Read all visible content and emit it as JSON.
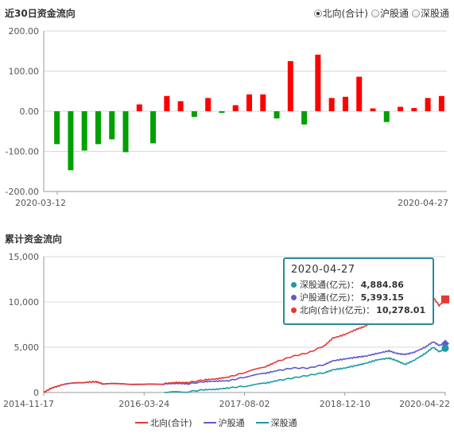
{
  "header": {
    "top_title": "近30日资金流向",
    "bottom_title": "累计资金流向",
    "radios": [
      {
        "label": "北向(合计)",
        "selected": true
      },
      {
        "label": "沪股通",
        "selected": false
      },
      {
        "label": "深股通",
        "selected": false
      }
    ]
  },
  "colors": {
    "up": "#ff0000",
    "down": "#00a000",
    "north": "#e53935",
    "sh": "#5c5cc8",
    "sz": "#1a9aa0"
  },
  "chart_data": [
    {
      "type": "bar",
      "ylim": [
        -200,
        200
      ],
      "yticks": [
        "200.00",
        "100.00",
        "0.00",
        "-100.00",
        "-200.00"
      ],
      "xlabels": [
        "2020-03-12",
        "2020-04-27"
      ],
      "values": [
        -82,
        -147,
        -98,
        -82,
        -70,
        -102,
        17,
        -80,
        38,
        25,
        -14,
        33,
        -4,
        15,
        42,
        42,
        -18,
        125,
        -33,
        141,
        33,
        36,
        86,
        7,
        -27,
        11,
        8,
        33,
        38
      ]
    },
    {
      "type": "line",
      "ylim": [
        0,
        15000
      ],
      "yticks": [
        "15,000",
        "10,000",
        "5,000",
        "0"
      ],
      "xlabels": [
        "2014-11-17",
        "2016-03-24",
        "2017-08-02",
        "2018-12-10",
        "2020-04-22"
      ],
      "legend": [
        "北向(合计)",
        "沪股通",
        "深股通"
      ],
      "tooltip": {
        "date": "2020-04-27",
        "rows": [
          {
            "label": "深股通(亿元)",
            "value": "4,884.86"
          },
          {
            "label": "沪股通(亿元)",
            "value": "5,393.15"
          },
          {
            "label": "北向(合计)(亿元)",
            "value": "10,278.01"
          }
        ]
      },
      "series": [
        {
          "name": "北向(合计)",
          "end": 10278.01,
          "points": [
            [
              0,
              0
            ],
            [
              0.02,
              500
            ],
            [
              0.05,
              900
            ],
            [
              0.1,
              1100
            ],
            [
              0.13,
              1200
            ],
            [
              0.15,
              900
            ],
            [
              0.2,
              1000
            ],
            [
              0.25,
              850
            ],
            [
              0.3,
              1000
            ],
            [
              0.33,
              1100
            ],
            [
              0.36,
              1100
            ],
            [
              0.4,
              1400
            ],
            [
              0.43,
              1500
            ],
            [
              0.46,
              1700
            ],
            [
              0.5,
              2200
            ],
            [
              0.55,
              2800
            ],
            [
              0.58,
              3400
            ],
            [
              0.62,
              4000
            ],
            [
              0.66,
              4400
            ],
            [
              0.7,
              5200
            ],
            [
              0.72,
              6000
            ],
            [
              0.75,
              6400
            ],
            [
              0.78,
              7000
            ],
            [
              0.8,
              7300
            ],
            [
              0.83,
              8200
            ],
            [
              0.86,
              8900
            ],
            [
              0.88,
              8500
            ],
            [
              0.9,
              7700
            ],
            [
              0.92,
              8600
            ],
            [
              0.95,
              9800
            ],
            [
              0.97,
              10500
            ],
            [
              0.985,
              9600
            ],
            [
              1.0,
              10278
            ]
          ]
        },
        {
          "name": "沪股通",
          "end": 5393.15,
          "points": [
            [
              0,
              0
            ],
            [
              0.02,
              500
            ],
            [
              0.05,
              900
            ],
            [
              0.1,
              1100
            ],
            [
              0.13,
              1200
            ],
            [
              0.15,
              900
            ],
            [
              0.2,
              1000
            ],
            [
              0.25,
              850
            ],
            [
              0.3,
              950
            ],
            [
              0.33,
              1000
            ],
            [
              0.36,
              950
            ],
            [
              0.4,
              1200
            ],
            [
              0.43,
              1250
            ],
            [
              0.46,
              1300
            ],
            [
              0.5,
              1700
            ],
            [
              0.55,
              2100
            ],
            [
              0.58,
              2400
            ],
            [
              0.62,
              2700
            ],
            [
              0.66,
              2700
            ],
            [
              0.7,
              3100
            ],
            [
              0.72,
              3500
            ],
            [
              0.75,
              3700
            ],
            [
              0.78,
              3900
            ],
            [
              0.8,
              4000
            ],
            [
              0.83,
              4300
            ],
            [
              0.86,
              4600
            ],
            [
              0.88,
              4300
            ],
            [
              0.9,
              4200
            ],
            [
              0.92,
              4400
            ],
            [
              0.95,
              5000
            ],
            [
              0.97,
              5600
            ],
            [
              0.985,
              5200
            ],
            [
              1.0,
              5393
            ]
          ]
        },
        {
          "name": "深股通",
          "end": 4884.86,
          "points": [
            [
              0.3,
              0
            ],
            [
              0.36,
              100
            ],
            [
              0.4,
              300
            ],
            [
              0.43,
              350
            ],
            [
              0.46,
              500
            ],
            [
              0.5,
              700
            ],
            [
              0.55,
              1000
            ],
            [
              0.58,
              1300
            ],
            [
              0.62,
              1600
            ],
            [
              0.66,
              1900
            ],
            [
              0.7,
              2200
            ],
            [
              0.72,
              2500
            ],
            [
              0.75,
              2700
            ],
            [
              0.78,
              3000
            ],
            [
              0.8,
              3200
            ],
            [
              0.83,
              3600
            ],
            [
              0.86,
              3800
            ],
            [
              0.88,
              3500
            ],
            [
              0.9,
              3100
            ],
            [
              0.92,
              3500
            ],
            [
              0.95,
              4300
            ],
            [
              0.97,
              5000
            ],
            [
              0.985,
              4500
            ],
            [
              1.0,
              4885
            ]
          ]
        }
      ]
    }
  ]
}
